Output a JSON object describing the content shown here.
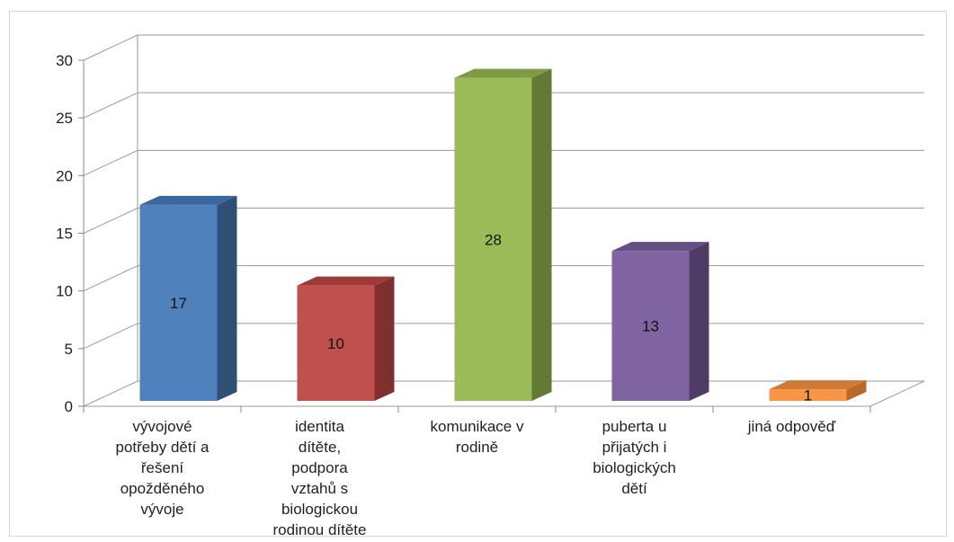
{
  "chart_data": {
    "type": "bar",
    "title": "",
    "xlabel": "",
    "ylabel": "",
    "ylim": [
      0,
      30
    ],
    "yticks": [
      0,
      5,
      10,
      15,
      20,
      25,
      30
    ],
    "grid": true,
    "legend": "none",
    "style": "3d-column",
    "categories": [
      [
        "vývojové",
        "potřeby dětí a",
        "řešení",
        "opožděného",
        "vývoje"
      ],
      [
        "identita",
        "dítěte,",
        "podpora",
        "vztahů s",
        "biologickou",
        "rodinou dítěte"
      ],
      [
        "komunikace v",
        "rodině"
      ],
      [
        "puberta u",
        "přijatých i",
        "biologických",
        "dětí"
      ],
      [
        "jiná odpověď"
      ]
    ],
    "values": [
      17,
      10,
      28,
      13,
      1
    ],
    "colors": [
      "#4F81BD",
      "#C0504D",
      "#9BBB59",
      "#8064A2",
      "#F79646"
    ],
    "colors_side": [
      "#2F4F77",
      "#7F2F2D",
      "#627A33",
      "#4F3C66",
      "#B8692A"
    ],
    "colors_top": [
      "#3A679E",
      "#9E3B38",
      "#7E9A44",
      "#654E85",
      "#D07A35"
    ]
  }
}
